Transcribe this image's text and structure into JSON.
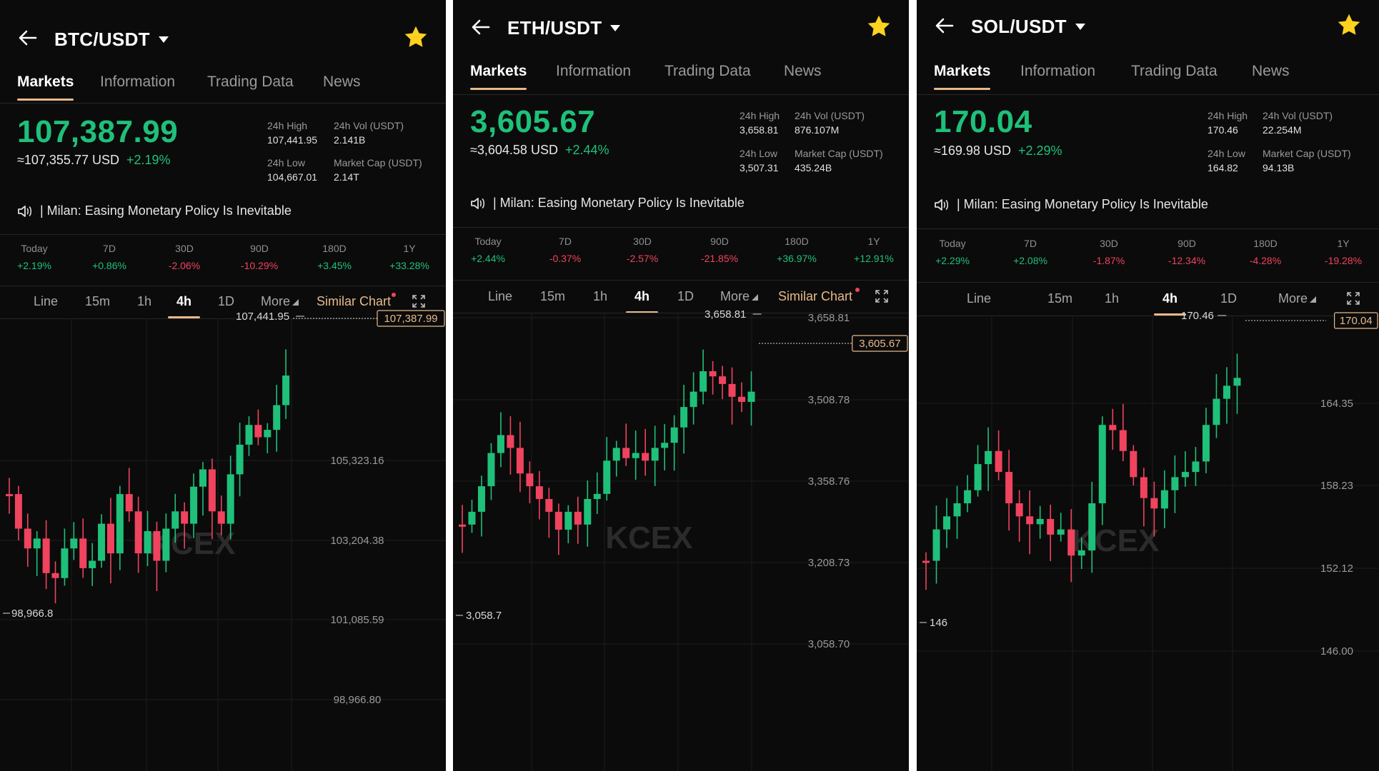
{
  "colors": {
    "up": "#1fc07a",
    "down": "#f0435e",
    "accent": "#e8b98a",
    "bg": "#0b0b0b"
  },
  "panels": [
    {
      "pair": "BTC/USDT",
      "tabs": [
        "Markets",
        "Information",
        "Trading Data",
        "News"
      ],
      "price": "107,387.99",
      "usd": "≈107,355.77 USD",
      "change": "+2.19%",
      "high_label": "24h High",
      "high": "107,441.95",
      "vol_label": "24h Vol (USDT)",
      "vol": "2.141B",
      "low_label": "24h Low",
      "low": "104,667.01",
      "cap_label": "Market Cap (USDT)",
      "cap": "2.14T",
      "news": "|  Milan: Easing Monetary Policy Is Inevitable",
      "perf": [
        {
          "l": "Today",
          "v": "+2.19%"
        },
        {
          "l": "7D",
          "v": "+0.86%"
        },
        {
          "l": "30D",
          "v": "-2.06%"
        },
        {
          "l": "90D",
          "v": "-10.29%"
        },
        {
          "l": "180D",
          "v": "+3.45%"
        },
        {
          "l": "1Y",
          "v": "+33.28%"
        }
      ],
      "timeframes": [
        "Line",
        "15m",
        "1h",
        "4h",
        "1D",
        "More",
        "Similar Chart"
      ],
      "active_tf": "4h",
      "watermark": "KCEX",
      "chart_data": {
        "type": "candlestick",
        "interval": "4h",
        "y_ticks": [
          "105,323.16",
          "103,204.38",
          "101,085.59",
          "98,966.80"
        ],
        "y_tick_values": [
          105323.16,
          103204.38,
          101085.59,
          98966.8
        ],
        "current_price_label": "107,387.99",
        "max_label": "107,441.95",
        "min_label": "98,966.8",
        "ylim": [
          98966.8,
          107441.95
        ]
      }
    },
    {
      "pair": "ETH/USDT",
      "tabs": [
        "Markets",
        "Information",
        "Trading Data",
        "News"
      ],
      "price": "3,605.67",
      "usd": "≈3,604.58 USD",
      "change": "+2.44%",
      "high_label": "24h High",
      "high": "3,658.81",
      "vol_label": "24h Vol (USDT)",
      "vol": "876.107M",
      "low_label": "24h Low",
      "low": "3,507.31",
      "cap_label": "Market Cap (USDT)",
      "cap": "435.24B",
      "news": "|  Milan: Easing Monetary Policy Is Inevitable",
      "perf": [
        {
          "l": "Today",
          "v": "+2.44%"
        },
        {
          "l": "7D",
          "v": "-0.37%"
        },
        {
          "l": "30D",
          "v": "-2.57%"
        },
        {
          "l": "90D",
          "v": "-21.85%"
        },
        {
          "l": "180D",
          "v": "+36.97%"
        },
        {
          "l": "1Y",
          "v": "+12.91%"
        }
      ],
      "timeframes": [
        "Line",
        "15m",
        "1h",
        "4h",
        "1D",
        "More",
        "Similar Chart"
      ],
      "active_tf": "4h",
      "watermark": "KCEX",
      "chart_data": {
        "type": "candlestick",
        "interval": "4h",
        "y_ticks": [
          "3,658.81",
          "3,508.78",
          "3,358.76",
          "3,208.73",
          "3,058.70"
        ],
        "y_tick_values": [
          3658.81,
          3508.78,
          3358.76,
          3208.73,
          3058.7
        ],
        "current_price_label": "3,605.67",
        "max_label": "3,658.81",
        "min_label": "3,058.7",
        "ylim": [
          3058.7,
          3658.81
        ]
      }
    },
    {
      "pair": "SOL/USDT",
      "tabs": [
        "Markets",
        "Information",
        "Trading Data",
        "News"
      ],
      "price": "170.04",
      "usd": "≈169.98 USD",
      "change": "+2.29%",
      "high_label": "24h High",
      "high": "170.46",
      "vol_label": "24h Vol (USDT)",
      "vol": "22.254M",
      "low_label": "24h Low",
      "low": "164.82",
      "cap_label": "Market Cap (USDT)",
      "cap": "94.13B",
      "news": "|  Milan: Easing Monetary Policy Is Inevitable",
      "perf": [
        {
          "l": "Today",
          "v": "+2.29%"
        },
        {
          "l": "7D",
          "v": "+2.08%"
        },
        {
          "l": "30D",
          "v": "-1.87%"
        },
        {
          "l": "90D",
          "v": "-12.34%"
        },
        {
          "l": "180D",
          "v": "-4.28%"
        },
        {
          "l": "1Y",
          "v": "-19.28%"
        }
      ],
      "timeframes": [
        "Line",
        "15m",
        "1h",
        "4h",
        "1D",
        "More"
      ],
      "active_tf": "4h",
      "watermark": "KCEX",
      "chart_data": {
        "type": "candlestick",
        "interval": "4h",
        "y_ticks": [
          "164.35",
          "158.23",
          "152.12",
          "146.00"
        ],
        "y_tick_values": [
          164.35,
          158.23,
          152.12,
          146.0
        ],
        "current_price_label": "170.04",
        "max_label": "170.46",
        "min_label": "146",
        "ylim": [
          146,
          170.46
        ]
      }
    }
  ]
}
